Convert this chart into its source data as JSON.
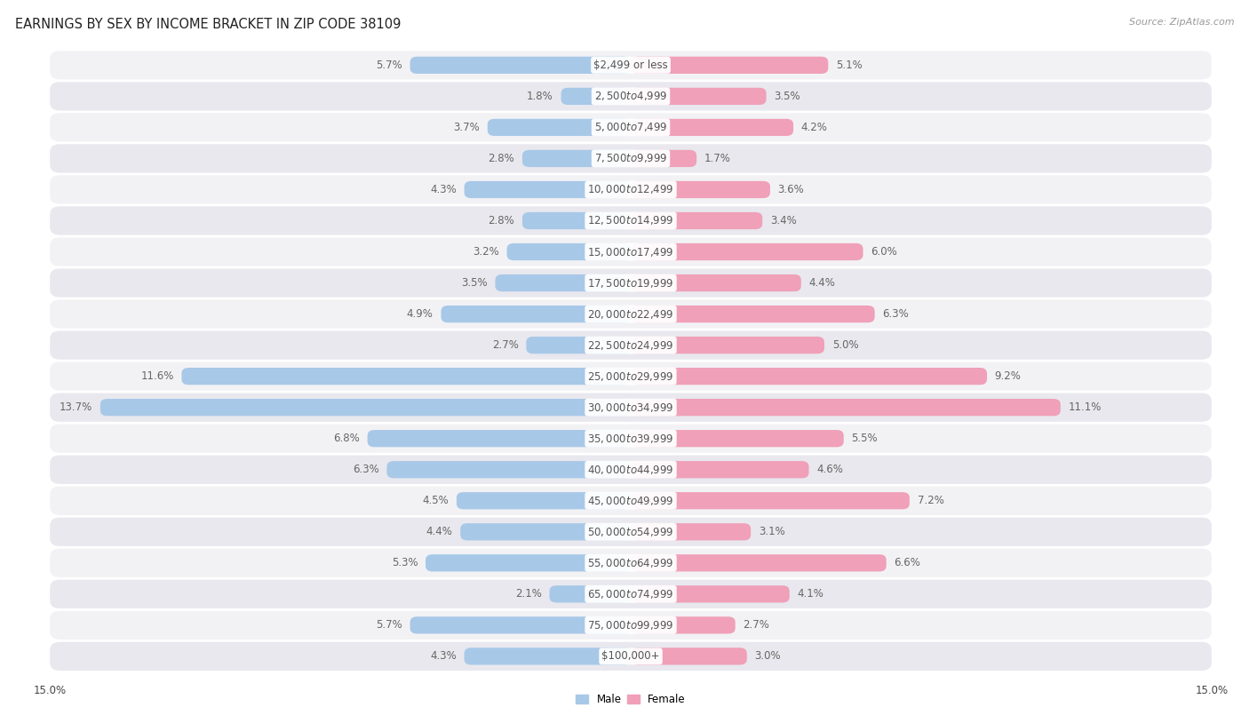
{
  "title": "EARNINGS BY SEX BY INCOME BRACKET IN ZIP CODE 38109",
  "source": "Source: ZipAtlas.com",
  "categories": [
    "$2,499 or less",
    "$2,500 to $4,999",
    "$5,000 to $7,499",
    "$7,500 to $9,999",
    "$10,000 to $12,499",
    "$12,500 to $14,999",
    "$15,000 to $17,499",
    "$17,500 to $19,999",
    "$20,000 to $22,499",
    "$22,500 to $24,999",
    "$25,000 to $29,999",
    "$30,000 to $34,999",
    "$35,000 to $39,999",
    "$40,000 to $44,999",
    "$45,000 to $49,999",
    "$50,000 to $54,999",
    "$55,000 to $64,999",
    "$65,000 to $74,999",
    "$75,000 to $99,999",
    "$100,000+"
  ],
  "male_values": [
    5.7,
    1.8,
    3.7,
    2.8,
    4.3,
    2.8,
    3.2,
    3.5,
    4.9,
    2.7,
    11.6,
    13.7,
    6.8,
    6.3,
    4.5,
    4.4,
    5.3,
    2.1,
    5.7,
    4.3
  ],
  "female_values": [
    5.1,
    3.5,
    4.2,
    1.7,
    3.6,
    3.4,
    6.0,
    4.4,
    6.3,
    5.0,
    9.2,
    11.1,
    5.5,
    4.6,
    7.2,
    3.1,
    6.6,
    4.1,
    2.7,
    3.0
  ],
  "male_color": "#a8c8e8",
  "female_color": "#f0a0b8",
  "label_color": "#666666",
  "category_color": "#555555",
  "row_bg_odd": "#f2f2f5",
  "row_bg_even": "#e8e8ee",
  "xlim": 15.0,
  "title_fontsize": 10.5,
  "label_fontsize": 8.5,
  "category_fontsize": 8.5,
  "source_fontsize": 8
}
